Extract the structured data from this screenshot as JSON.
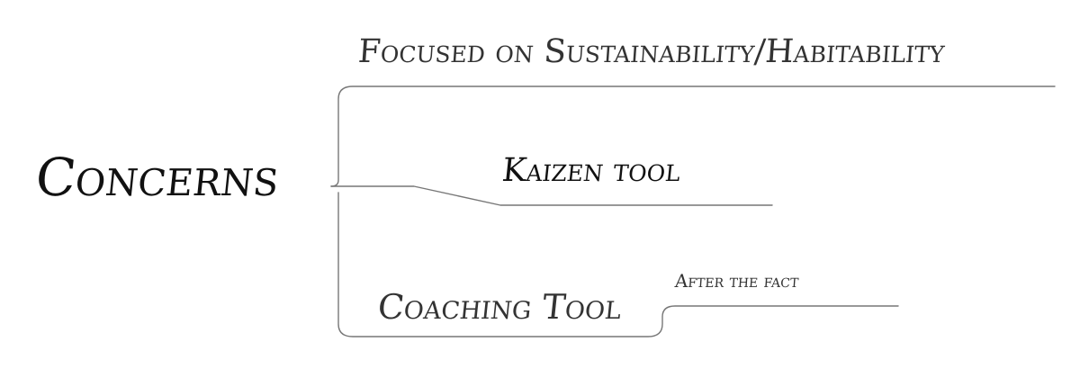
{
  "mindmap": {
    "root": "Concerns",
    "branches": [
      {
        "label": "Focused on Sustainability/Habitability"
      },
      {
        "label": "Kaizen tool"
      },
      {
        "label": "Coaching Tool",
        "children": [
          {
            "label": "After the fact"
          }
        ]
      }
    ]
  },
  "colors": {
    "text": "#111111",
    "text_secondary": "#333333",
    "connector": "#777777",
    "background": "#ffffff"
  }
}
